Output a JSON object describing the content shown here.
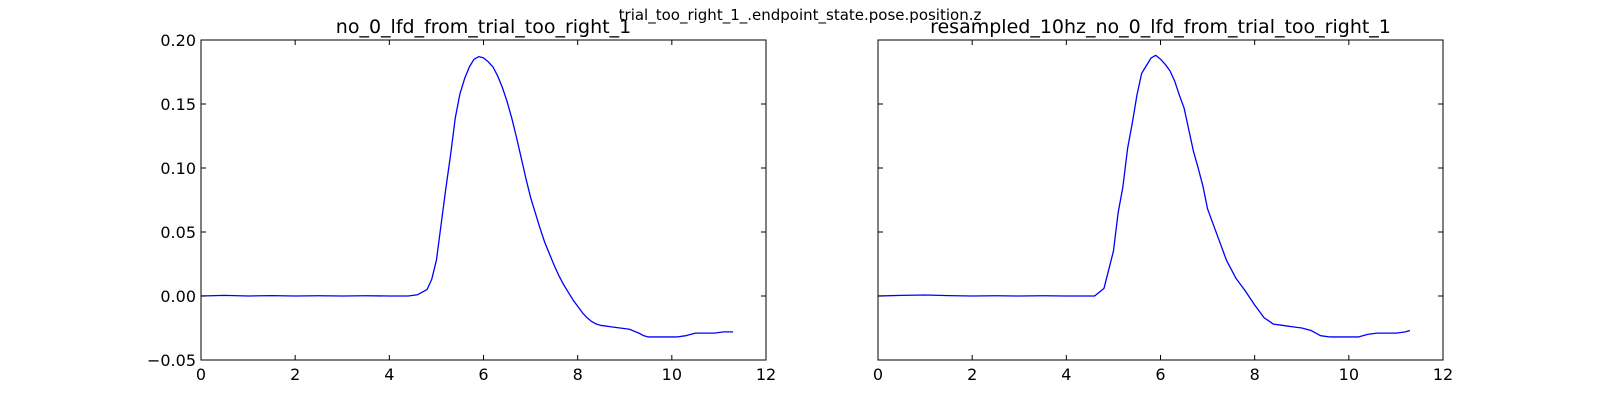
{
  "figure": {
    "suptitle": "trial_too_right_1_.endpoint_state.pose.position.z"
  },
  "colors": {
    "series": "#0000ff",
    "axes": "#000000"
  },
  "chart_data": [
    {
      "type": "line",
      "title": "no_0_lfd_from_trial_too_right_1",
      "xlabel": "",
      "ylabel": "",
      "xlim": [
        0,
        12
      ],
      "ylim": [
        -0.05,
        0.2
      ],
      "xticks": [
        0,
        2,
        4,
        6,
        8,
        10,
        12
      ],
      "yticks": [
        -0.05,
        0.0,
        0.05,
        0.1,
        0.15,
        0.2
      ],
      "xtick_labels": [
        "0",
        "2",
        "4",
        "6",
        "8",
        "10",
        "12"
      ],
      "ytick_labels": [
        "−0.05",
        "0.00",
        "0.05",
        "0.10",
        "0.15",
        "0.20"
      ],
      "grid": false,
      "series": [
        {
          "x": [
            0,
            0.5,
            1,
            1.5,
            2,
            2.5,
            3,
            3.5,
            4,
            4.4,
            4.6,
            4.8,
            4.9,
            5.0,
            5.1,
            5.2,
            5.3,
            5.4,
            5.5,
            5.6,
            5.7,
            5.8,
            5.9,
            6.0,
            6.1,
            6.2,
            6.3,
            6.4,
            6.5,
            6.6,
            6.7,
            6.8,
            6.9,
            7.0,
            7.1,
            7.2,
            7.3,
            7.4,
            7.5,
            7.6,
            7.7,
            7.8,
            7.9,
            8.0,
            8.1,
            8.2,
            8.3,
            8.4,
            8.5,
            8.7,
            8.9,
            9.1,
            9.3,
            9.4,
            9.5,
            9.7,
            9.9,
            10.1,
            10.3,
            10.5,
            10.7,
            10.9,
            11.1,
            11.3
          ],
          "y": [
            0.0,
            0.0005,
            0.0,
            0.0003,
            0.0,
            0.0002,
            0.0,
            0.0002,
            0.0,
            0.0,
            0.001,
            0.005,
            0.013,
            0.028,
            0.056,
            0.084,
            0.11,
            0.139,
            0.158,
            0.17,
            0.179,
            0.185,
            0.187,
            0.186,
            0.183,
            0.179,
            0.172,
            0.163,
            0.152,
            0.139,
            0.124,
            0.108,
            0.092,
            0.077,
            0.065,
            0.053,
            0.042,
            0.033,
            0.024,
            0.016,
            0.009,
            0.003,
            -0.003,
            -0.008,
            -0.013,
            -0.017,
            -0.02,
            -0.022,
            -0.023,
            -0.024,
            -0.025,
            -0.026,
            -0.029,
            -0.031,
            -0.032,
            -0.032,
            -0.032,
            -0.032,
            -0.031,
            -0.029,
            -0.029,
            -0.029,
            -0.028,
            -0.028
          ]
        }
      ]
    },
    {
      "type": "line",
      "title": "resampled_10hz_no_0_lfd_from_trial_too_right_1",
      "xlabel": "",
      "ylabel": "",
      "xlim": [
        0,
        12
      ],
      "ylim": [
        -0.05,
        0.2
      ],
      "xticks": [
        0,
        2,
        4,
        6,
        8,
        10,
        12
      ],
      "yticks": [
        -0.05,
        0.0,
        0.05,
        0.1,
        0.15,
        0.2
      ],
      "xtick_labels": [
        "0",
        "2",
        "4",
        "6",
        "8",
        "10",
        "12"
      ],
      "ytick_labels": [],
      "grid": false,
      "series": [
        {
          "x": [
            0,
            0.5,
            1,
            1.5,
            2,
            2.5,
            3,
            3.5,
            4,
            4.6,
            4.8,
            5.0,
            5.1,
            5.2,
            5.3,
            5.4,
            5.5,
            5.6,
            5.7,
            5.8,
            5.9,
            6.0,
            6.1,
            6.2,
            6.3,
            6.4,
            6.5,
            6.6,
            6.7,
            6.8,
            6.9,
            7.0,
            7.2,
            7.4,
            7.6,
            7.8,
            8.0,
            8.2,
            8.4,
            8.6,
            8.8,
            9.0,
            9.2,
            9.4,
            9.6,
            9.8,
            10.0,
            10.2,
            10.4,
            10.6,
            10.8,
            11.0,
            11.2,
            11.3
          ],
          "y": [
            0.0,
            0.0005,
            0.0008,
            0.0003,
            0.0,
            0.0002,
            0.0,
            0.0002,
            0.0,
            0.0,
            0.006,
            0.035,
            0.065,
            0.085,
            0.115,
            0.135,
            0.157,
            0.174,
            0.18,
            0.186,
            0.188,
            0.185,
            0.181,
            0.176,
            0.168,
            0.157,
            0.147,
            0.13,
            0.113,
            0.1,
            0.086,
            0.068,
            0.048,
            0.028,
            0.014,
            0.004,
            -0.007,
            -0.017,
            -0.022,
            -0.023,
            -0.024,
            -0.025,
            -0.027,
            -0.031,
            -0.032,
            -0.032,
            -0.032,
            -0.032,
            -0.03,
            -0.029,
            -0.029,
            -0.029,
            -0.028,
            -0.027
          ]
        }
      ]
    }
  ]
}
